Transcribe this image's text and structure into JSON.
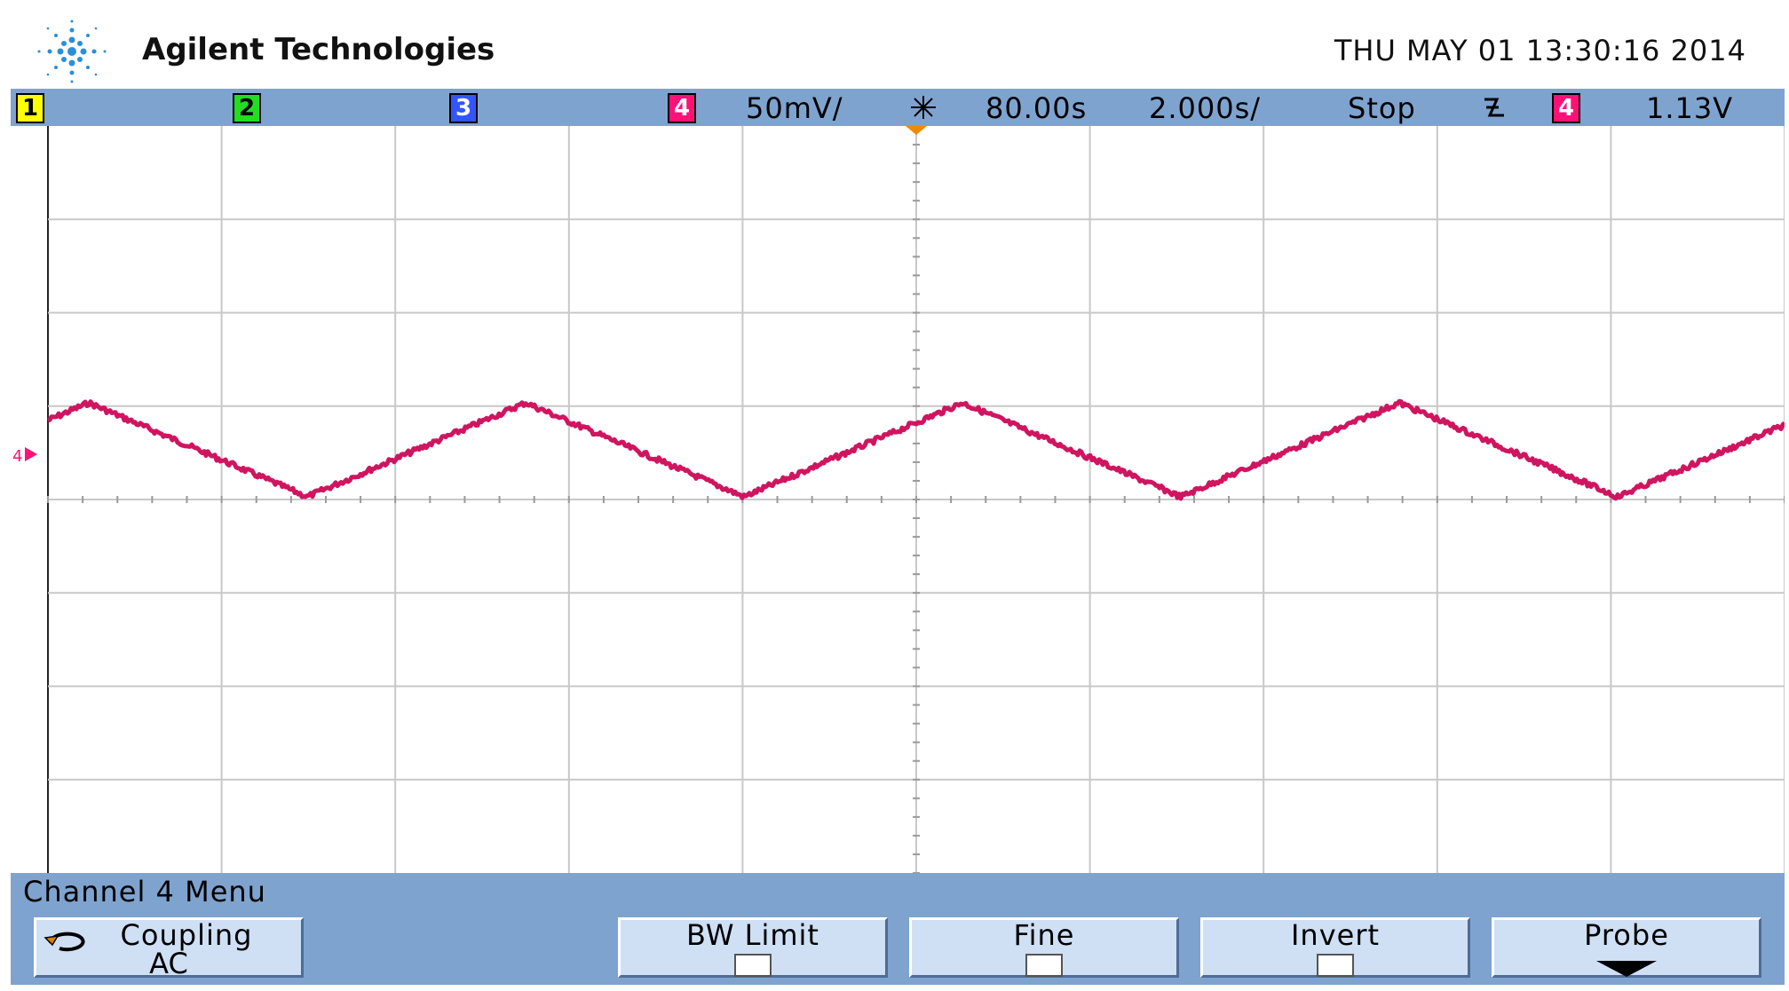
{
  "header": {
    "brand": "Agilent Technologies",
    "datetime": "THU MAY 01 13:30:16 2014"
  },
  "status_bar": {
    "channels": [
      "1",
      "2",
      "3",
      "4"
    ],
    "volts_per_div": "50mV/",
    "trigger_delay": "80.00s",
    "time_per_div": "2.000s/",
    "run_state": "Stop",
    "trigger_slope_icon": "falling-edge-icon",
    "trigger_source": "4",
    "trigger_level": "1.13V"
  },
  "waveform": {
    "channel": "4",
    "color": "#d01560",
    "ground_marker": "4"
  },
  "menu": {
    "title": "Channel 4  Menu",
    "coupling_label": "Coupling",
    "coupling_value": "AC",
    "bw_limit_label": "BW Limit",
    "fine_label": "Fine",
    "invert_label": "Invert",
    "probe_label": "Probe"
  },
  "colors": {
    "status_bg": "#7fa3cf",
    "ch1": "#ffff00",
    "ch2": "#22dd22",
    "ch3": "#3355ff",
    "ch4": "#ff1177",
    "trace": "#d01560"
  }
}
